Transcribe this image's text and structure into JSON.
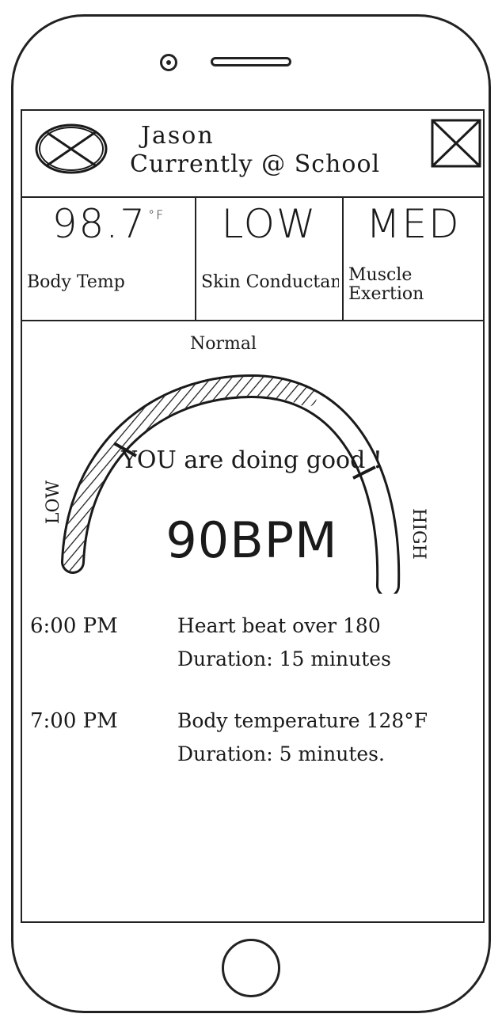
{
  "header": {
    "avatar_icon": "avatar-placeholder-icon",
    "user_name": "Jason",
    "status": "Currently @ School",
    "action_icon": "image-placeholder-icon"
  },
  "stats": [
    {
      "value": "98.7",
      "unit": "°F",
      "label": "Body Temp"
    },
    {
      "value": "LOW",
      "unit": "",
      "label": "Skin Conductance"
    },
    {
      "value": "MED",
      "unit": "",
      "label": "Muscle Exertion"
    }
  ],
  "gauge": {
    "normal_label": "Normal",
    "low_label": "LOW",
    "high_label": "HIGH",
    "message": "YOU are doing good !",
    "bpm": "90BPM"
  },
  "events": [
    {
      "time": "6:00 PM",
      "description": "Heart beat over 180",
      "duration": "Duration: 15 minutes"
    },
    {
      "time": "7:00 PM",
      "description": "Body temperature 128°F",
      "duration": "Duration: 5 minutes."
    }
  ]
}
